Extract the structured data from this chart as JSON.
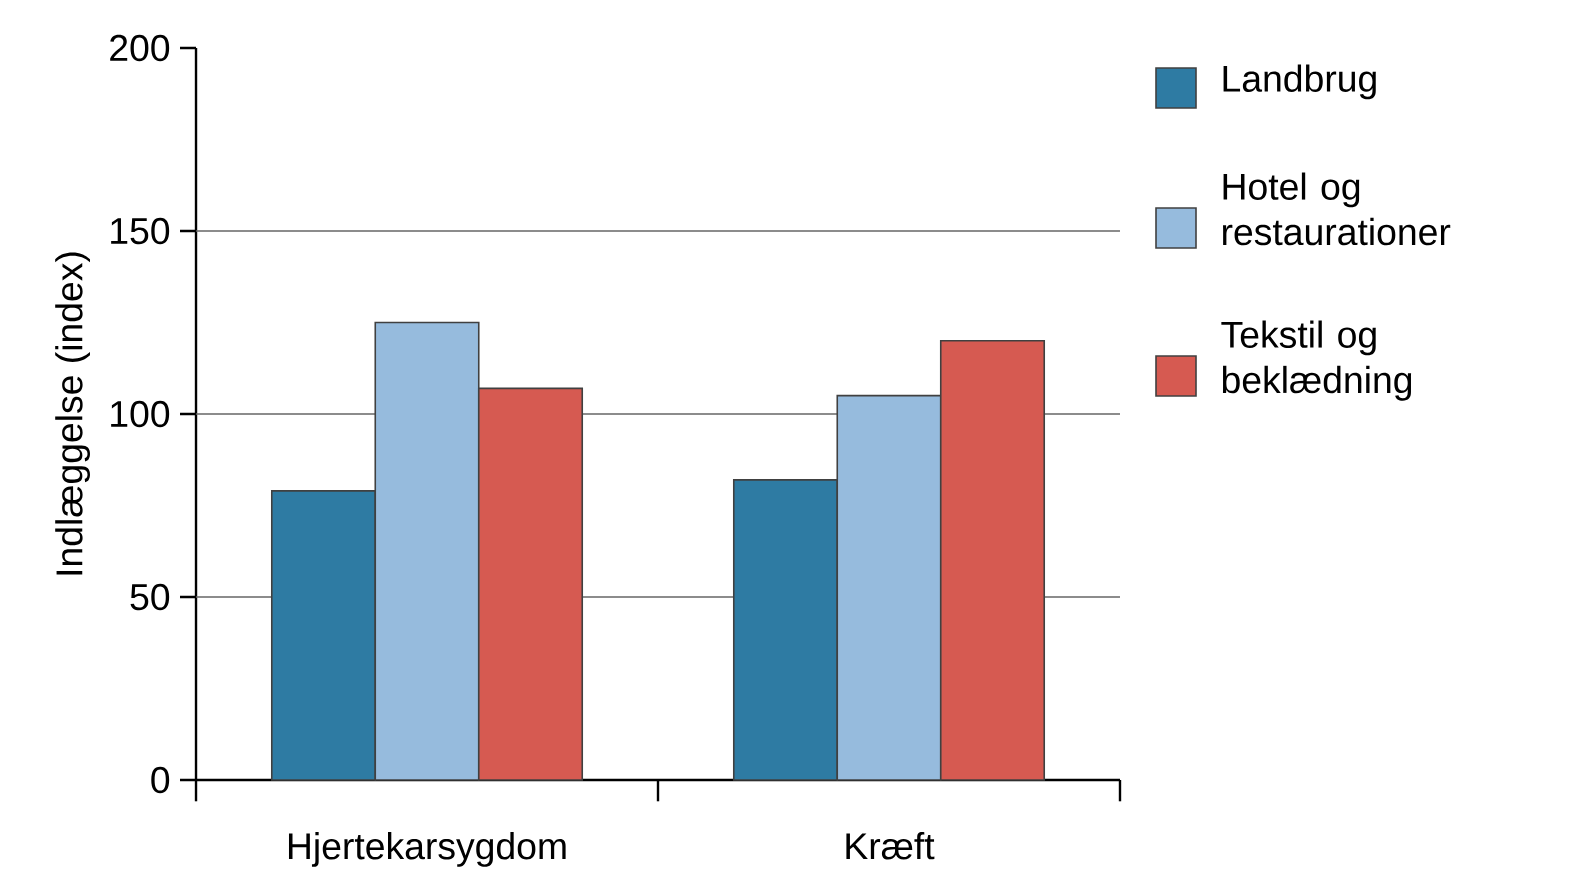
{
  "chart_data": {
    "type": "bar",
    "ylabel": "Indlæggelse (index)",
    "categories": [
      "Hjertekarsygdom",
      "Kræft"
    ],
    "series": [
      {
        "name": "Landbrug",
        "color": "#2e7ba3",
        "values": [
          79,
          82
        ]
      },
      {
        "name": "Hotel og restaurationer",
        "color": "#96bbdd",
        "values": [
          125,
          105
        ]
      },
      {
        "name": "Tekstil og beklædning",
        "color": "#d65a51",
        "values": [
          107,
          120
        ]
      }
    ],
    "ylim": [
      0,
      200
    ],
    "yticks": [
      0,
      50,
      100,
      150,
      200
    ],
    "grid": "y",
    "legend": "right"
  }
}
